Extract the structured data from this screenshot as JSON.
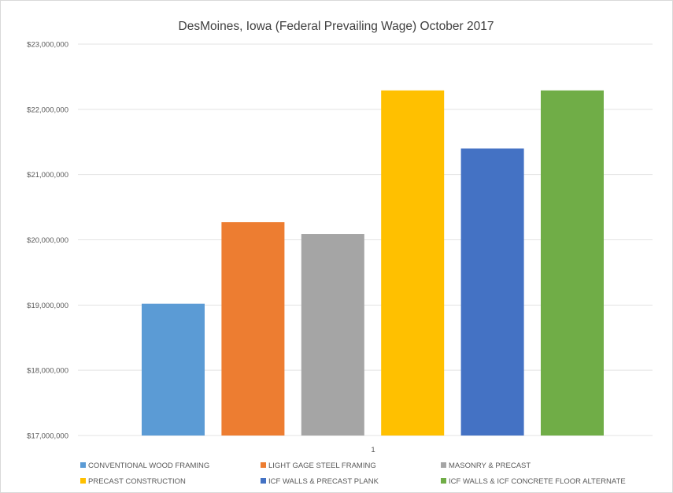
{
  "chart_data": {
    "type": "bar",
    "title": "DesMoines, Iowa (Federal Prevailing Wage) October 2017",
    "xlabel": "",
    "ylabel": "",
    "categories": [
      "1"
    ],
    "ylim": [
      17000000,
      23000000
    ],
    "yticks": [
      17000000,
      18000000,
      19000000,
      20000000,
      21000000,
      22000000,
      23000000
    ],
    "ytick_labels": [
      "$17,000,000",
      "$18,000,000",
      "$19,000,000",
      "$20,000,000",
      "$21,000,000",
      "$22,000,000",
      "$23,000,000"
    ],
    "grid": true,
    "legend_position": "bottom",
    "series": [
      {
        "name": "CONVENTIONAL WOOD FRAMING",
        "values": [
          19020000
        ],
        "color": "#5B9BD5"
      },
      {
        "name": "LIGHT GAGE STEEL FRAMING",
        "values": [
          20270000
        ],
        "color": "#ED7D31"
      },
      {
        "name": "MASONRY & PRECAST",
        "values": [
          20090000
        ],
        "color": "#A5A5A5"
      },
      {
        "name": "PRECAST CONSTRUCTION",
        "values": [
          22290000
        ],
        "color": "#FFC000"
      },
      {
        "name": "ICF WALLS & PRECAST PLANK",
        "values": [
          21400000
        ],
        "color": "#4472C4"
      },
      {
        "name": "ICF WALLS & ICF CONCRETE FLOOR ALTERNATE",
        "values": [
          22290000
        ],
        "color": "#70AD47"
      }
    ]
  }
}
